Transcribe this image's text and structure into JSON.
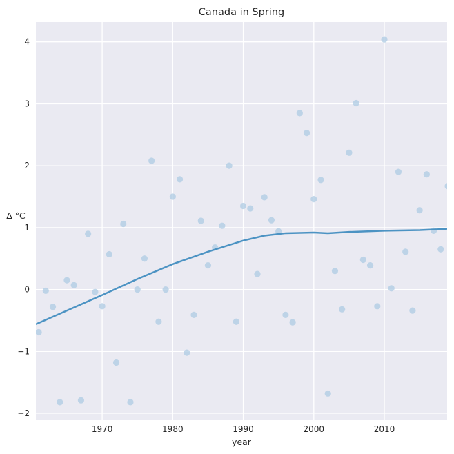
{
  "chart_data": {
    "type": "scatter",
    "title": "Canada in Spring",
    "xlabel": "year",
    "ylabel": "Δ °C",
    "xlim": [
      1960.6,
      2018.9
    ],
    "ylim": [
      -2.1,
      4.32
    ],
    "xticks": [
      1970,
      1980,
      1990,
      2000,
      2010
    ],
    "xtick_labels": [
      "1970",
      "1980",
      "1990",
      "2000",
      "2010"
    ],
    "yticks": [
      -2,
      -1,
      0,
      1,
      2,
      3,
      4
    ],
    "ytick_labels": [
      "−2",
      "−1",
      "0",
      "1",
      "2",
      "3",
      "4"
    ],
    "grid": true,
    "background": "#eaeaf2",
    "grid_color": "#ffffff",
    "point_color": "#aecbe3",
    "line_color": "#4c93c3",
    "points": [
      {
        "x": 1961,
        "y": -0.69
      },
      {
        "x": 1962,
        "y": -0.02
      },
      {
        "x": 1963,
        "y": -0.28
      },
      {
        "x": 1964,
        "y": -1.82
      },
      {
        "x": 1965,
        "y": 0.15
      },
      {
        "x": 1966,
        "y": 0.07
      },
      {
        "x": 1967,
        "y": -1.79
      },
      {
        "x": 1968,
        "y": 0.9
      },
      {
        "x": 1969,
        "y": -0.04
      },
      {
        "x": 1970,
        "y": -0.27
      },
      {
        "x": 1971,
        "y": 0.57
      },
      {
        "x": 1972,
        "y": -1.18
      },
      {
        "x": 1973,
        "y": 1.06
      },
      {
        "x": 1974,
        "y": -1.82
      },
      {
        "x": 1975,
        "y": 0.0
      },
      {
        "x": 1976,
        "y": 0.5
      },
      {
        "x": 1977,
        "y": 2.08
      },
      {
        "x": 1978,
        "y": -0.52
      },
      {
        "x": 1979,
        "y": 0.0
      },
      {
        "x": 1980,
        "y": 1.5
      },
      {
        "x": 1981,
        "y": 1.78
      },
      {
        "x": 1982,
        "y": -1.02
      },
      {
        "x": 1983,
        "y": -0.41
      },
      {
        "x": 1984,
        "y": 1.11
      },
      {
        "x": 1985,
        "y": 0.39
      },
      {
        "x": 1986,
        "y": 0.68
      },
      {
        "x": 1987,
        "y": 1.03
      },
      {
        "x": 1988,
        "y": 2.0
      },
      {
        "x": 1989,
        "y": -0.52
      },
      {
        "x": 1990,
        "y": 1.35
      },
      {
        "x": 1991,
        "y": 1.31
      },
      {
        "x": 1992,
        "y": 0.25
      },
      {
        "x": 1993,
        "y": 1.49
      },
      {
        "x": 1994,
        "y": 1.12
      },
      {
        "x": 1995,
        "y": 0.94
      },
      {
        "x": 1996,
        "y": -0.41
      },
      {
        "x": 1997,
        "y": -0.53
      },
      {
        "x": 1998,
        "y": 2.85
      },
      {
        "x": 1999,
        "y": 2.53
      },
      {
        "x": 2000,
        "y": 1.46
      },
      {
        "x": 2001,
        "y": 1.77
      },
      {
        "x": 2002,
        "y": -1.68
      },
      {
        "x": 2003,
        "y": 0.3
      },
      {
        "x": 2004,
        "y": -0.32
      },
      {
        "x": 2005,
        "y": 2.21
      },
      {
        "x": 2006,
        "y": 3.01
      },
      {
        "x": 2007,
        "y": 0.48
      },
      {
        "x": 2008,
        "y": 0.39
      },
      {
        "x": 2009,
        "y": -0.27
      },
      {
        "x": 2010,
        "y": 4.04
      },
      {
        "x": 2011,
        "y": 0.02
      },
      {
        "x": 2012,
        "y": 1.9
      },
      {
        "x": 2013,
        "y": 0.61
      },
      {
        "x": 2014,
        "y": -0.34
      },
      {
        "x": 2015,
        "y": 1.28
      },
      {
        "x": 2016,
        "y": 1.86
      },
      {
        "x": 2017,
        "y": 0.95
      },
      {
        "x": 2018,
        "y": 0.65
      },
      {
        "x": 2019,
        "y": 1.67
      }
    ],
    "trend": {
      "x": [
        1960.6,
        1965,
        1970,
        1975,
        1980,
        1985,
        1990,
        1993,
        1996,
        2000,
        2002,
        2005,
        2010,
        2015,
        2018.9
      ],
      "y": [
        -0.56,
        -0.34,
        -0.09,
        0.17,
        0.41,
        0.61,
        0.79,
        0.87,
        0.91,
        0.92,
        0.91,
        0.93,
        0.95,
        0.96,
        0.98
      ]
    }
  }
}
